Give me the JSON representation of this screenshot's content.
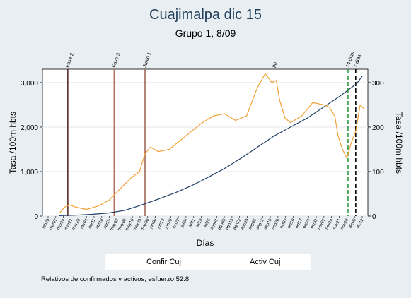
{
  "header": {
    "title": "Cuajimalpa dic 15",
    "subtitle": "Grupo 1,  8/09"
  },
  "note": "Relativos de confirmados y activos; esfuerzo 52.8",
  "colors": {
    "confirmed": "#1f3f66",
    "active": "#f2a035",
    "background": "#e9eef2"
  },
  "chart_data": {
    "type": "line",
    "xlabel": "Días",
    "ylabel_left": "Tasa /100m hbts",
    "ylabel_right": "Tasa /100m hbts",
    "ylim_left": [
      0,
      3300
    ],
    "ylim_right": [
      0,
      330
    ],
    "yticks_left": [
      "0",
      "1,000",
      "2,000",
      "3,000"
    ],
    "yticks_right": [
      "0",
      "100",
      "200",
      "300"
    ],
    "grid": true,
    "legend_position": "bottom",
    "x_tick_labels": [
      "feb29",
      "mar07",
      "mar14",
      "mar21",
      "mar28",
      "abr04",
      "abr11",
      "abr18",
      "abr25",
      "may02",
      "may09",
      "may16",
      "may23",
      "may30",
      "jun06",
      "jun13",
      "jun20",
      "jun27",
      "jul04",
      "jul11",
      "jul18",
      "jul25",
      "ago01",
      "ago08",
      "ago15",
      "ago22",
      "ago29",
      "sep05",
      "sep12",
      "sep19",
      "sep26",
      "oct03",
      "oct10",
      "oct17",
      "oct24",
      "oct31",
      "nov07",
      "nov14",
      "nov21",
      "nov28",
      "dic05",
      "dic12"
    ],
    "x_range": [
      0,
      295
    ],
    "events": [
      {
        "label": "Fase 2",
        "x": 23,
        "color": "#5a2a2a",
        "style": "solid"
      },
      {
        "label": "Fase 3",
        "x": 65,
        "color": "#b07060",
        "style": "solid"
      },
      {
        "label": "Junio 1",
        "x": 93,
        "color": "#a06858",
        "style": "solid"
      },
      {
        "label": "pp",
        "x": 210,
        "color": "#f0a0a0",
        "style": "dotted"
      },
      {
        "label": "14 días",
        "x": 277,
        "color": "#2e9a3e",
        "style": "dashed"
      },
      {
        "label": "7 días",
        "x": 284,
        "color": "#000000",
        "style": "dashed"
      }
    ],
    "series": [
      {
        "name": "Confir Cuj",
        "axis": "left",
        "x": [
          15,
          30,
          45,
          60,
          75,
          90,
          105,
          120,
          135,
          150,
          165,
          180,
          195,
          210,
          225,
          240,
          255,
          270,
          285,
          290
        ],
        "values": [
          10,
          20,
          40,
          70,
          130,
          250,
          380,
          520,
          680,
          870,
          1070,
          1300,
          1550,
          1800,
          2000,
          2200,
          2450,
          2700,
          2980,
          3150
        ]
      },
      {
        "name": "Activ Cuj",
        "axis": "right",
        "x": [
          15,
          20,
          25,
          30,
          40,
          50,
          60,
          70,
          80,
          88,
          93,
          98,
          105,
          115,
          125,
          135,
          145,
          155,
          165,
          175,
          185,
          195,
          202,
          208,
          212,
          215,
          220,
          225,
          235,
          245,
          255,
          260,
          265,
          268,
          272,
          276,
          280,
          284,
          288,
          292
        ],
        "values": [
          5,
          20,
          25,
          20,
          15,
          22,
          35,
          60,
          85,
          100,
          140,
          155,
          145,
          150,
          170,
          190,
          210,
          225,
          230,
          215,
          225,
          290,
          320,
          300,
          305,
          260,
          220,
          210,
          225,
          255,
          250,
          245,
          225,
          180,
          150,
          130,
          165,
          190,
          250,
          240
        ]
      }
    ]
  }
}
